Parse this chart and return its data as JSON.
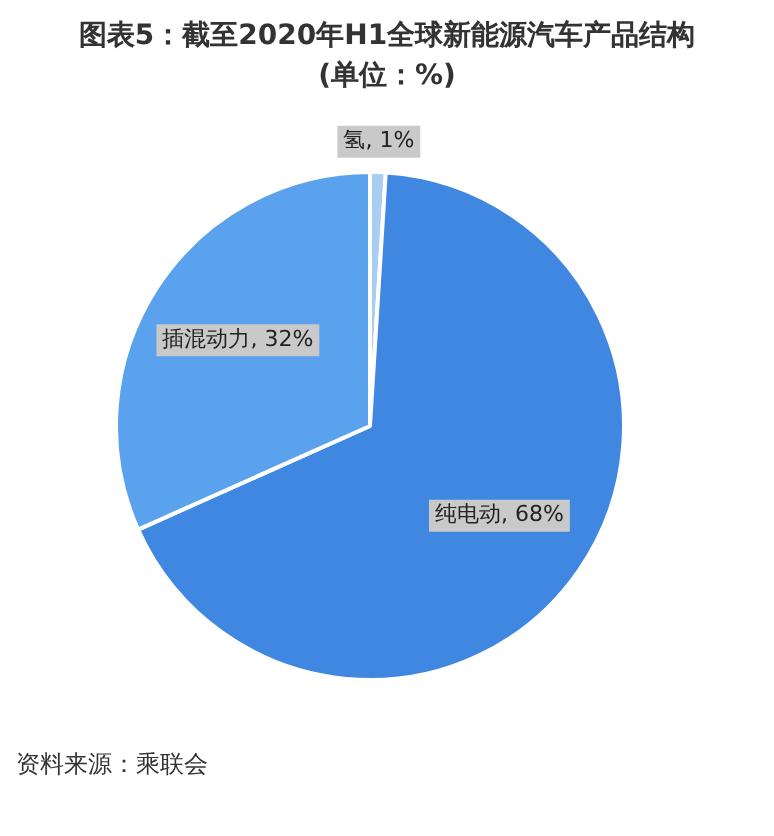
{
  "chart_data": {
    "type": "pie",
    "title": "图表5：截至2020年H1全球新能源汽车产品结构",
    "subtitle": "(单位：%)",
    "categories": [
      "氢",
      "纯电动",
      "插混动力"
    ],
    "values": [
      1,
      68,
      32
    ],
    "colors": [
      "#a9cdf3",
      "#3f87e0",
      "#5aa2ee"
    ],
    "value_labels": [
      ", 1%",
      ", 68%",
      ", 32%"
    ],
    "legend": false,
    "annotations": [
      "资料来源：乘联会"
    ]
  }
}
